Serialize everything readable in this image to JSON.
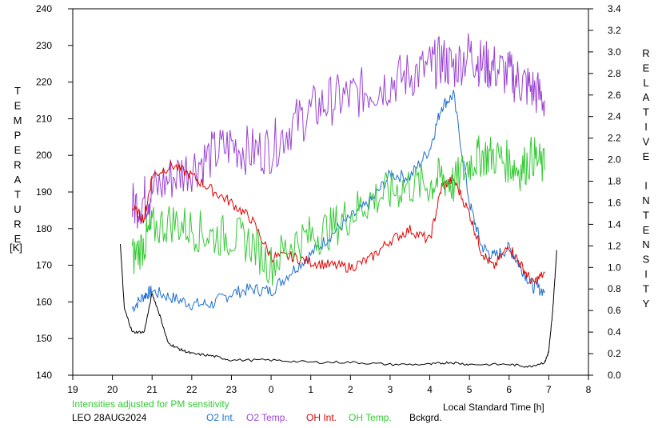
{
  "chart_data": {
    "type": "line",
    "left_axis_label": "TEMPERATURE",
    "left_axis_unit": "[K]",
    "right_axis_label": "RELATIVE INTENSITY",
    "x_axis_label": "Local Standard Time [h]",
    "x_ticks": [
      "19",
      "20",
      "21",
      "22",
      "23",
      "0",
      "1",
      "2",
      "3",
      "4",
      "5",
      "6",
      "7",
      "8"
    ],
    "x_range": [
      19,
      32
    ],
    "y_left_range": [
      140,
      240
    ],
    "y_left_ticks": [
      140,
      150,
      160,
      170,
      180,
      190,
      200,
      210,
      220,
      230,
      240
    ],
    "y_right_range": [
      0.0,
      3.4
    ],
    "y_right_ticks": [
      "0.0",
      "0.2",
      "0.4",
      "0.6",
      "0.8",
      "1.0",
      "1.2",
      "1.4",
      "1.6",
      "1.8",
      "2.0",
      "2.2",
      "2.4",
      "2.6",
      "2.8",
      "3.0",
      "3.2",
      "3.4"
    ],
    "note": "Intensities adjusted for PM sensitivity",
    "station": "LEO 28AUG2024",
    "series": [
      {
        "name": "O2 Int.",
        "axis": "right",
        "color": "#1e6fd0",
        "x": [
          20.5,
          20.8,
          21.0,
          21.5,
          22.0,
          22.5,
          23.0,
          23.5,
          24.0,
          24.5,
          25.0,
          25.5,
          26.0,
          26.5,
          27.0,
          27.5,
          28.0,
          28.3,
          28.6,
          29.0,
          29.3,
          29.6,
          30.0,
          30.3,
          30.6,
          30.9
        ],
        "y": [
          0.62,
          0.74,
          0.78,
          0.72,
          0.66,
          0.66,
          0.76,
          0.8,
          0.78,
          0.96,
          1.12,
          1.3,
          1.46,
          1.6,
          1.86,
          1.84,
          2.1,
          2.5,
          2.6,
          1.6,
          1.2,
          1.1,
          1.18,
          1.0,
          0.82,
          0.78
        ]
      },
      {
        "name": "O2 Temp.",
        "axis": "left",
        "color": "#9b44d4",
        "x": [
          20.5,
          20.8,
          21.0,
          21.5,
          22.0,
          22.5,
          23.0,
          23.5,
          24.0,
          24.5,
          25.0,
          25.5,
          26.0,
          26.5,
          27.0,
          27.5,
          28.0,
          28.3,
          28.6,
          29.0,
          29.3,
          29.6,
          30.0,
          30.3,
          30.6,
          30.9
        ],
        "y": [
          186,
          188,
          190,
          194,
          197,
          200,
          203,
          201,
          202,
          208,
          212,
          215,
          216,
          218,
          220,
          222,
          224,
          226,
          224,
          228,
          225,
          224,
          222,
          220,
          218,
          215
        ]
      },
      {
        "name": "OH Int.",
        "axis": "right",
        "color": "#e00000",
        "x": [
          20.5,
          20.8,
          21.0,
          21.5,
          22.0,
          22.5,
          23.0,
          23.5,
          24.0,
          24.5,
          25.0,
          25.5,
          26.0,
          26.5,
          27.0,
          27.5,
          28.0,
          28.3,
          28.6,
          29.0,
          29.3,
          29.6,
          30.0,
          30.3,
          30.6,
          30.9
        ],
        "y": [
          1.55,
          1.45,
          1.85,
          1.95,
          1.85,
          1.72,
          1.6,
          1.45,
          1.1,
          1.1,
          1.05,
          1.02,
          1.0,
          1.08,
          1.25,
          1.35,
          1.25,
          1.75,
          1.82,
          1.5,
          1.15,
          1.0,
          1.2,
          1.02,
          0.85,
          0.95
        ]
      },
      {
        "name": "OH Temp.",
        "axis": "left",
        "color": "#35c935",
        "x": [
          20.5,
          20.8,
          21.0,
          21.5,
          22.0,
          22.5,
          23.0,
          23.5,
          24.0,
          24.5,
          25.0,
          25.5,
          26.0,
          26.5,
          27.0,
          27.5,
          28.0,
          28.3,
          28.6,
          29.0,
          29.3,
          29.6,
          30.0,
          30.3,
          30.6,
          30.9
        ],
        "y": [
          172,
          176,
          180,
          182,
          180,
          178,
          178,
          176,
          170,
          176,
          178,
          180,
          184,
          188,
          190,
          192,
          192,
          194,
          192,
          198,
          200,
          200,
          198,
          196,
          200,
          196
        ]
      },
      {
        "name": "Bckgrd.",
        "axis": "right",
        "color": "#000000",
        "x": [
          20.2,
          20.3,
          20.5,
          20.8,
          21.0,
          21.2,
          21.4,
          21.7,
          22.0,
          22.5,
          23.0,
          24.0,
          25.0,
          26.0,
          27.0,
          28.0,
          28.5,
          29.0,
          30.0,
          30.5,
          30.9,
          31.0,
          31.1,
          31.2
        ],
        "y": [
          1.22,
          0.62,
          0.4,
          0.4,
          0.76,
          0.55,
          0.3,
          0.24,
          0.2,
          0.18,
          0.14,
          0.14,
          0.12,
          0.12,
          0.1,
          0.1,
          0.12,
          0.1,
          0.1,
          0.08,
          0.12,
          0.22,
          0.6,
          1.16
        ]
      }
    ]
  }
}
